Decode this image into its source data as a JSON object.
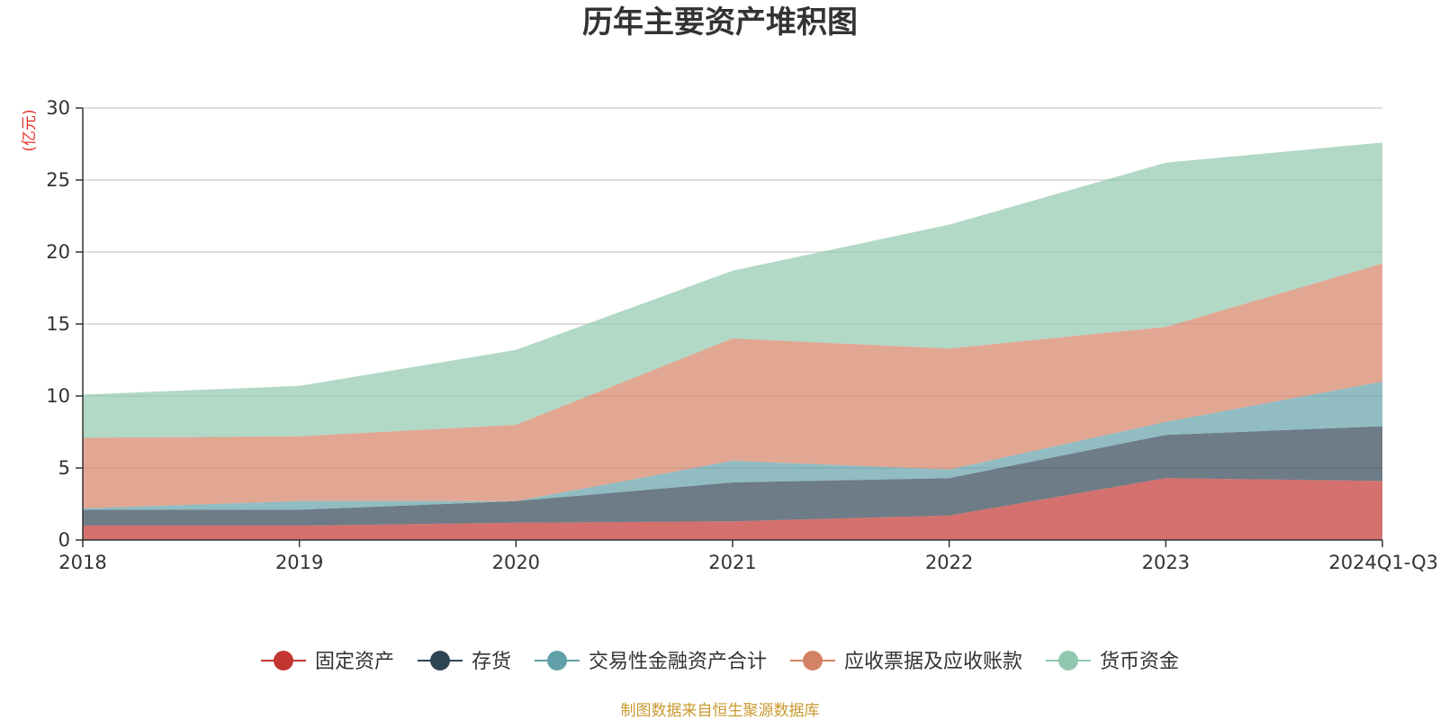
{
  "chart_data": {
    "type": "area",
    "stacked": true,
    "title": "历年主要资产堆积图",
    "ylabel": "(亿元)",
    "xlabel": "",
    "categories": [
      "2018",
      "2019",
      "2020",
      "2021",
      "2022",
      "2023",
      "2024Q1-Q3"
    ],
    "ylim": [
      0,
      30
    ],
    "yticks": [
      0,
      5,
      10,
      15,
      20,
      25,
      30
    ],
    "grid": true,
    "legend_position": "bottom",
    "series": [
      {
        "name": "固定资产",
        "color": "#c23531",
        "values": [
          1.0,
          1.0,
          1.2,
          1.3,
          1.7,
          4.3,
          4.1
        ]
      },
      {
        "name": "存货",
        "color": "#2f4554",
        "values": [
          1.1,
          1.1,
          1.5,
          2.7,
          2.6,
          3.0,
          3.8
        ]
      },
      {
        "name": "交易性金融资产合计",
        "color": "#61a0a8",
        "values": [
          0.1,
          0.6,
          0.0,
          1.5,
          0.6,
          0.9,
          3.1
        ]
      },
      {
        "name": "应收票据及应收账款",
        "color": "#d48265",
        "values": [
          4.9,
          4.5,
          5.3,
          8.5,
          8.4,
          6.6,
          8.2
        ]
      },
      {
        "name": "货币资金",
        "color": "#91c7ae",
        "values": [
          3.0,
          3.5,
          5.2,
          4.7,
          8.6,
          11.4,
          8.4
        ]
      }
    ]
  },
  "footer": {
    "source": "制图数据来自恒生聚源数据库"
  }
}
